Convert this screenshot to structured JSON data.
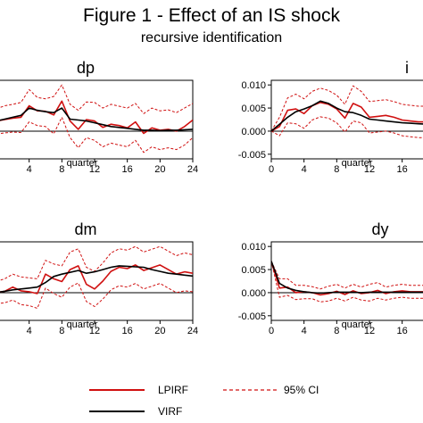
{
  "title": "Figure 1 - Effect of an IS shock",
  "subtitle": "recursive identification",
  "colors": {
    "lpirf": "#d01010",
    "virf": "#000000",
    "ci": "#d01010"
  },
  "legend": {
    "lpirf": "LPIRF",
    "ci": "95% CI",
    "virf": "VIRF"
  },
  "chart_data": [
    {
      "type": "line",
      "title": "dp",
      "xlabel": "quarter",
      "xticks": [
        4,
        8,
        12,
        16,
        20,
        24
      ],
      "xlim": [
        0,
        24
      ],
      "ylim": [
        -0.006,
        0.011
      ],
      "yticks": [],
      "x": [
        0,
        1,
        2,
        3,
        4,
        5,
        6,
        7,
        8,
        9,
        10,
        11,
        12,
        13,
        14,
        15,
        16,
        17,
        18,
        19,
        20,
        21,
        22,
        23,
        24
      ],
      "series": [
        {
          "name": "LPIRF",
          "values": [
            0.0022,
            0.0025,
            0.0028,
            0.003,
            0.0055,
            0.0044,
            0.0043,
            0.0035,
            0.0065,
            0.0022,
            0.0004,
            0.0025,
            0.0022,
            0.0008,
            0.0015,
            0.0012,
            0.0007,
            0.002,
            -0.0005,
            0.0007,
            0.0002,
            0.0004,
            0.0,
            0.001,
            0.0024
          ]
        },
        {
          "name": "VIRF",
          "values": [
            0.0022,
            0.0026,
            0.003,
            0.0034,
            0.005,
            0.0045,
            0.0042,
            0.004,
            0.005,
            0.0026,
            0.0024,
            0.0022,
            0.0018,
            0.0014,
            0.001,
            0.0008,
            0.0006,
            0.0004,
            0.0002,
            0.0002,
            0.0001,
            0.0002,
            0.0002,
            0.0003,
            0.0004
          ]
        },
        {
          "name": "95% CI upper",
          "values": [
            0.0048,
            0.0055,
            0.0058,
            0.0062,
            0.009,
            0.0073,
            0.007,
            0.0075,
            0.01,
            0.0058,
            0.0045,
            0.0063,
            0.0062,
            0.005,
            0.0058,
            0.0054,
            0.005,
            0.006,
            0.0038,
            0.005,
            0.0044,
            0.0046,
            0.004,
            0.005,
            0.006
          ]
        },
        {
          "name": "95% CI lower",
          "values": [
            -0.0006,
            -0.0004,
            -0.0002,
            -0.0003,
            0.002,
            0.0012,
            0.001,
            -0.0006,
            0.003,
            -0.0014,
            -0.0036,
            -0.0014,
            -0.002,
            -0.0034,
            -0.0026,
            -0.003,
            -0.0034,
            -0.002,
            -0.0046,
            -0.0034,
            -0.004,
            -0.0036,
            -0.004,
            -0.003,
            -0.0014
          ]
        }
      ]
    },
    {
      "type": "line",
      "title": "i",
      "xlabel": "quarter",
      "xticks": [
        0,
        4,
        8,
        12,
        16
      ],
      "xlim": [
        0,
        24
      ],
      "ylim": [
        -0.006,
        0.011
      ],
      "yticks": [
        0.01,
        0.005,
        0.0,
        -0.005
      ],
      "yticklabels": [
        "0.010",
        "0.005",
        "0.000",
        "-0.005"
      ],
      "x": [
        0,
        1,
        2,
        3,
        4,
        5,
        6,
        7,
        8,
        9,
        10,
        11,
        12,
        13,
        14,
        15,
        16,
        17,
        18,
        19,
        20,
        21,
        22,
        23,
        24
      ],
      "series": [
        {
          "name": "LPIRF",
          "values": [
            0.0,
            0.001,
            0.0045,
            0.0048,
            0.0038,
            0.0055,
            0.0062,
            0.0058,
            0.0048,
            0.0028,
            0.006,
            0.0052,
            0.003,
            0.0032,
            0.0034,
            0.003,
            0.0024,
            0.0022,
            0.002,
            0.002,
            0.002,
            0.002,
            0.002,
            0.002,
            0.002
          ]
        },
        {
          "name": "VIRF",
          "values": [
            0.0,
            0.0015,
            0.003,
            0.0042,
            0.0048,
            0.0055,
            0.0065,
            0.006,
            0.005,
            0.0042,
            0.004,
            0.0034,
            0.0026,
            0.0024,
            0.0022,
            0.002,
            0.0018,
            0.0017,
            0.0016,
            0.0015,
            0.0014,
            0.0013,
            0.0012,
            0.0011,
            0.001
          ]
        },
        {
          "name": "95% CI upper",
          "values": [
            0.0,
            0.003,
            0.0072,
            0.008,
            0.007,
            0.0086,
            0.0093,
            0.0088,
            0.0078,
            0.0058,
            0.0098,
            0.0086,
            0.0064,
            0.0066,
            0.0068,
            0.0064,
            0.0058,
            0.0056,
            0.0054,
            0.0054,
            0.0054,
            0.0054,
            0.0054,
            0.0054,
            0.0054
          ]
        },
        {
          "name": "95% CI lower",
          "values": [
            0.0,
            -0.001,
            0.0018,
            0.0016,
            0.0006,
            0.0024,
            0.0031,
            0.0028,
            0.0018,
            -0.0002,
            0.0022,
            0.0018,
            -0.0004,
            -0.0002,
            0.0,
            -0.0004,
            -0.001,
            -0.0012,
            -0.0014,
            -0.0014,
            -0.0014,
            -0.0014,
            -0.0014,
            -0.0014,
            -0.0014
          ]
        }
      ]
    },
    {
      "type": "line",
      "title": "dm",
      "xlabel": "quarter",
      "xticks": [
        4,
        8,
        12,
        16,
        20,
        24
      ],
      "xlim": [
        0,
        24
      ],
      "ylim": [
        -0.006,
        0.011
      ],
      "yticks": [],
      "x": [
        0,
        1,
        2,
        3,
        4,
        5,
        6,
        7,
        8,
        9,
        10,
        11,
        12,
        13,
        14,
        15,
        16,
        17,
        18,
        19,
        20,
        21,
        22,
        23,
        24
      ],
      "series": [
        {
          "name": "LPIRF",
          "values": [
            0.0,
            0.0003,
            0.0012,
            0.0004,
            0.0002,
            -0.0002,
            0.004,
            0.003,
            0.0024,
            0.005,
            0.0058,
            0.0018,
            0.0008,
            0.0025,
            0.0046,
            0.0055,
            0.0052,
            0.006,
            0.0048,
            0.0054,
            0.006,
            0.005,
            0.004,
            0.0045,
            0.0042
          ]
        },
        {
          "name": "VIRF",
          "values": [
            0.0,
            0.0003,
            0.0006,
            0.0008,
            0.001,
            0.0012,
            0.0022,
            0.0035,
            0.004,
            0.0044,
            0.0048,
            0.0042,
            0.0045,
            0.005,
            0.0055,
            0.0058,
            0.0057,
            0.0056,
            0.0055,
            0.005,
            0.0046,
            0.0042,
            0.004,
            0.0038,
            0.0036
          ]
        },
        {
          "name": "95% CI upper",
          "values": [
            0.0024,
            0.003,
            0.004,
            0.0034,
            0.0032,
            0.003,
            0.007,
            0.0062,
            0.0058,
            0.0088,
            0.0095,
            0.0055,
            0.0046,
            0.0064,
            0.0086,
            0.0095,
            0.0092,
            0.01,
            0.0088,
            0.0094,
            0.01,
            0.009,
            0.008,
            0.0086,
            0.0082
          ]
        },
        {
          "name": "95% CI lower",
          "values": [
            -0.0024,
            -0.0022,
            -0.0016,
            -0.0026,
            -0.0028,
            -0.0034,
            0.001,
            -0.0002,
            -0.001,
            0.0012,
            0.0021,
            -0.0019,
            -0.003,
            -0.0014,
            0.0006,
            0.0015,
            0.0012,
            0.002,
            0.0008,
            0.0014,
            0.002,
            0.001,
            0.0,
            0.0004,
            0.0002
          ]
        }
      ]
    },
    {
      "type": "line",
      "title": "dy",
      "xlabel": "quarter",
      "xticks": [
        0,
        4,
        8,
        12,
        16
      ],
      "xlim": [
        0,
        24
      ],
      "ylim": [
        -0.006,
        0.011
      ],
      "yticks": [
        0.01,
        0.005,
        0.0,
        -0.005
      ],
      "yticklabels": [
        "0.010",
        "0.005",
        "0.000",
        "-0.005"
      ],
      "x": [
        0,
        1,
        2,
        3,
        4,
        5,
        6,
        7,
        8,
        9,
        10,
        11,
        12,
        13,
        14,
        15,
        16,
        17,
        18,
        19,
        20,
        21,
        22,
        23,
        24
      ],
      "series": [
        {
          "name": "LPIRF",
          "values": [
            0.0068,
            0.001,
            0.0012,
            0.0,
            0.0002,
            0.0,
            -0.0005,
            -0.0002,
            0.0003,
            -0.0004,
            0.0004,
            -0.0002,
            0.0,
            0.0005,
            -0.0002,
            0.0002,
            0.0004,
            0.0002,
            0.0002,
            0.0002,
            0.0002,
            0.0002,
            0.0002,
            0.0002,
            0.0002
          ]
        },
        {
          "name": "VIRF",
          "values": [
            0.0068,
            0.002,
            0.001,
            0.0005,
            0.0002,
            0.0,
            -0.0001,
            0.0,
            0.0001,
            0.0001,
            0.0001,
            0.0,
            0.0001,
            0.0001,
            0.0001,
            0.0001,
            0.0001,
            0.0001,
            0.0001,
            0.0001,
            0.0001,
            0.0001,
            0.0001,
            0.0001,
            0.0001
          ]
        },
        {
          "name": "95% CI upper",
          "values": [
            0.0068,
            0.003,
            0.003,
            0.0016,
            0.0016,
            0.0013,
            0.0008,
            0.0014,
            0.0018,
            0.001,
            0.0018,
            0.0012,
            0.0018,
            0.0022,
            0.0012,
            0.0016,
            0.0018,
            0.0016,
            0.0016,
            0.0016,
            0.0016,
            0.0016,
            0.0016,
            0.0016,
            0.0016
          ]
        },
        {
          "name": "95% CI lower",
          "values": [
            0.0068,
            -0.001,
            -0.0006,
            -0.0015,
            -0.0013,
            -0.0013,
            -0.002,
            -0.0018,
            -0.0012,
            -0.0018,
            -0.001,
            -0.0016,
            -0.0018,
            -0.0012,
            -0.0016,
            -0.0012,
            -0.001,
            -0.0012,
            -0.0012,
            -0.0012,
            -0.0012,
            -0.0012,
            -0.0012,
            -0.0012,
            -0.0012
          ]
        }
      ]
    }
  ]
}
